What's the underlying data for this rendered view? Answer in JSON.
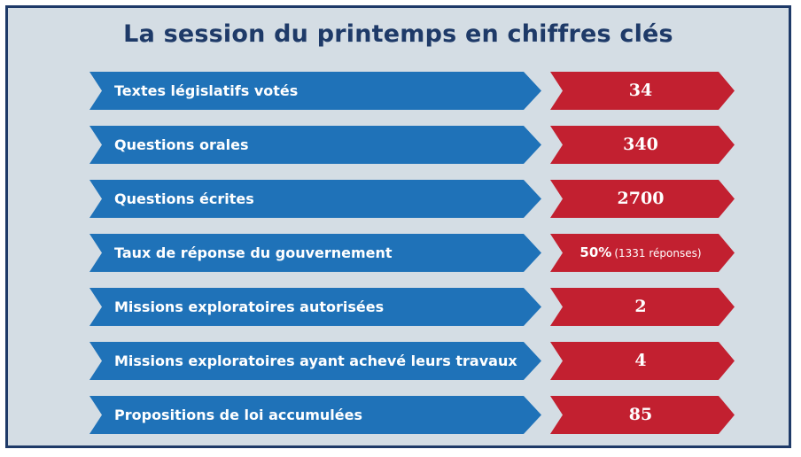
{
  "title": "La session du printemps en chiffres clés",
  "rows": [
    {
      "label": "Textes législatifs votés",
      "value": "34"
    },
    {
      "label": "Questions orales",
      "value": "340"
    },
    {
      "label": "Questions écrites",
      "value": "2700"
    },
    {
      "label": "Taux de réponse du gouvernement",
      "value": "50%",
      "value_detail": "(1331 réponses)"
    },
    {
      "label": "Missions exploratoires autorisées",
      "value": "2"
    },
    {
      "label": "Missions exploratoires ayant achevé leurs travaux",
      "value": "4"
    },
    {
      "label": "Propositions de loi accumulées",
      "value": "85"
    }
  ],
  "colors": {
    "background": "#d4dde4",
    "border": "#1e3a68",
    "title": "#1e3a68",
    "label_arrow": "#1f72b8",
    "value_arrow": "#c22030"
  }
}
